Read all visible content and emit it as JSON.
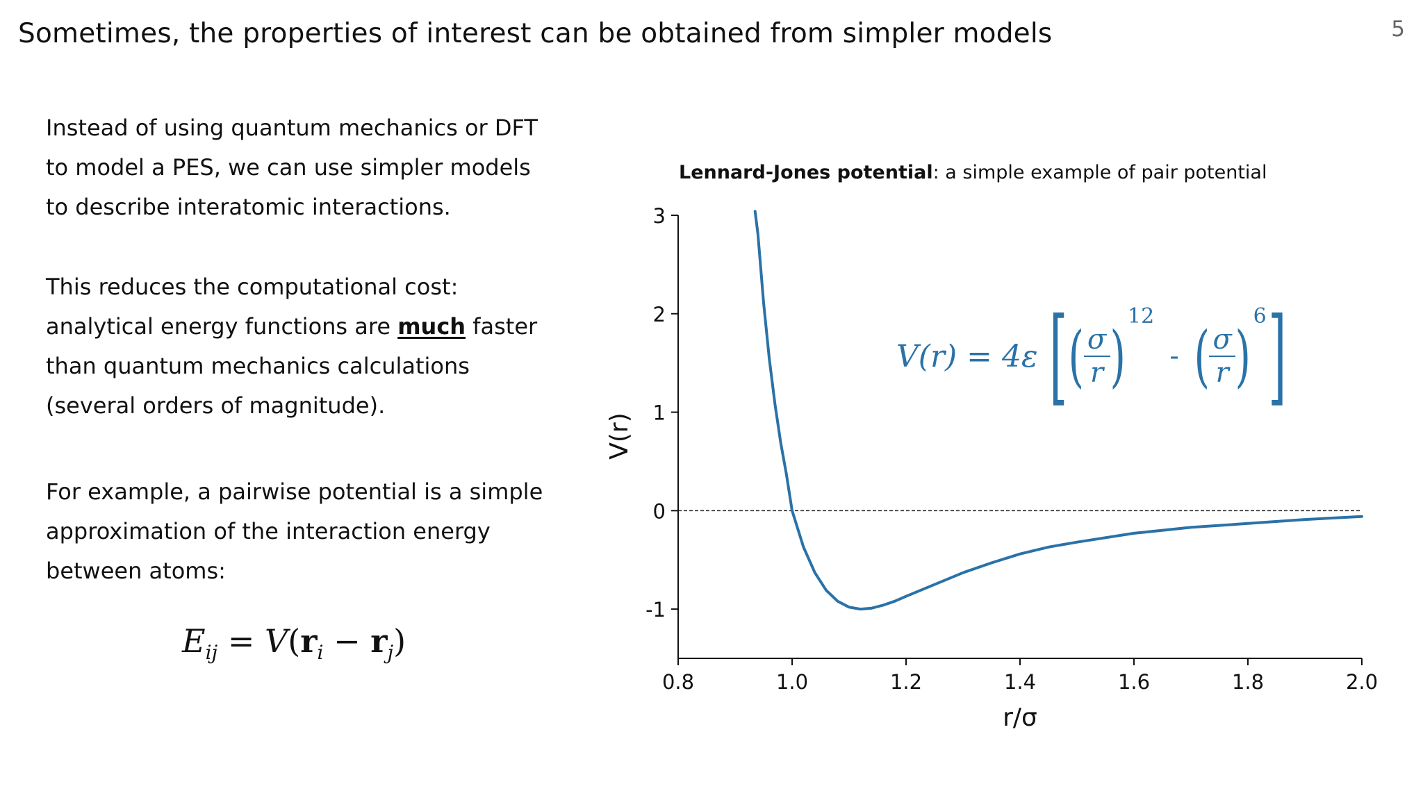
{
  "slide": {
    "title": "Sometimes, the properties of interest can be obtained from simpler models",
    "page_number": "5"
  },
  "text": {
    "para1": [
      "Instead of using quantum mechanics or DFT",
      "to model a PES, we can use simpler models",
      "to describe interatomic interactions."
    ],
    "para2": {
      "line1": "This reduces the computational cost:",
      "line2_before": "analytical energy functions are ",
      "line2_emph": "much",
      "line2_after": " faster",
      "line3": "than quantum mechanics calculations",
      "line4": "(several orders of magnitude)."
    },
    "para3": [
      "For example, a pairwise potential is a simple",
      "approximation of the interaction energy",
      "between atoms:"
    ],
    "pair_formula": {
      "lhs_symbol": "E",
      "lhs_sub": "ij",
      "equals": "=",
      "func": "V",
      "vec": "r",
      "sub_i": "i",
      "minus": "−",
      "sub_j": "j"
    }
  },
  "chart_title": {
    "bold": "Lennard-Jones potential",
    "rest": ": a simple example of pair potential"
  },
  "lj_formula": {
    "lhs": "V(r) = 4ε",
    "numerator": "σ",
    "denominator": "r",
    "exp1": "12",
    "exp2": "6",
    "minus": "-",
    "color": "#2a72a8"
  },
  "chart_data": {
    "type": "line",
    "title": "Lennard-Jones potential: a simple example of pair potential",
    "xlabel": "r/σ",
    "ylabel": "V(r)",
    "xlim": [
      0.8,
      2.0
    ],
    "ylim": [
      -1.5,
      3.0
    ],
    "xticks": [
      "0.8",
      "1.0",
      "1.2",
      "1.4",
      "1.6",
      "1.8",
      "2.0"
    ],
    "yticks": [
      "3",
      "2",
      "1",
      "0",
      "-1"
    ],
    "ytick_values": [
      3,
      2,
      1,
      0,
      -1
    ],
    "xtick_values": [
      0.8,
      1.0,
      1.2,
      1.4,
      1.6,
      1.8,
      2.0
    ],
    "grid": false,
    "reference_line": {
      "y": 0,
      "style": "dashed",
      "color": "#222222"
    },
    "series": [
      {
        "color": "#2a72a8",
        "x": [
          0.935,
          0.94,
          0.95,
          0.96,
          0.97,
          0.98,
          0.99,
          1.0,
          1.02,
          1.04,
          1.06,
          1.08,
          1.1,
          1.12,
          1.14,
          1.16,
          1.18,
          1.2,
          1.25,
          1.3,
          1.35,
          1.4,
          1.45,
          1.5,
          1.6,
          1.7,
          1.8,
          1.9,
          2.0
        ],
        "y": [
          3.04,
          2.81,
          2.11,
          1.54,
          1.08,
          0.69,
          0.37,
          0.0,
          -0.37,
          -0.63,
          -0.81,
          -0.92,
          -0.98,
          -1.0,
          -0.99,
          -0.96,
          -0.92,
          -0.87,
          -0.75,
          -0.63,
          -0.53,
          -0.44,
          -0.37,
          -0.32,
          -0.23,
          -0.17,
          -0.13,
          -0.09,
          -0.06
        ]
      }
    ]
  }
}
